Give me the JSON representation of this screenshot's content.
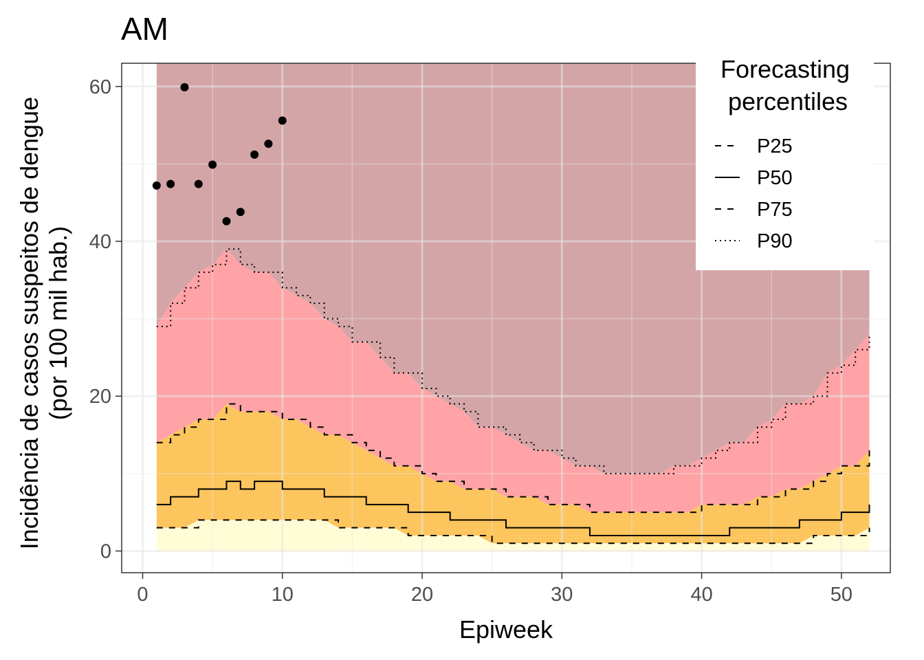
{
  "chart_data": {
    "type": "area",
    "title": "AM",
    "xlabel": "Epiweek",
    "ylabel": [
      "Incidência de casos suspeitos de dengue",
      "(por 100 mil hab.)"
    ],
    "xlim": [
      -1.5,
      53.5
    ],
    "ylim": [
      -2.8,
      63
    ],
    "x_ticks": [
      0,
      10,
      20,
      30,
      40,
      50
    ],
    "y_ticks": [
      0,
      20,
      40,
      60
    ],
    "x_tick_labels": [
      "0",
      "10",
      "20",
      "30",
      "40",
      "50"
    ],
    "y_tick_labels": [
      "0",
      "20",
      "40",
      "60"
    ],
    "grid": true,
    "legend": {
      "title": [
        "Forecasting",
        "percentiles"
      ],
      "position": "top-right",
      "entries": [
        {
          "label": "P25",
          "dash": "dashed"
        },
        {
          "label": "P50",
          "dash": "solid"
        },
        {
          "label": "P75",
          "dash": "dashed"
        },
        {
          "label": "P90",
          "dash": "dotted"
        }
      ]
    },
    "band_colors": {
      "below_p25": "#FFFDD6",
      "p25_p75": "#FDC55E",
      "p75_p90": "#FFA3A6",
      "above_p90": "#D4A5A7"
    },
    "x": [
      1,
      2,
      3,
      4,
      5,
      6,
      7,
      8,
      9,
      10,
      11,
      12,
      13,
      14,
      15,
      16,
      17,
      18,
      19,
      20,
      21,
      22,
      23,
      24,
      25,
      26,
      27,
      28,
      29,
      30,
      31,
      32,
      33,
      34,
      35,
      36,
      37,
      38,
      39,
      40,
      41,
      42,
      43,
      44,
      45,
      46,
      47,
      48,
      49,
      50,
      51,
      52
    ],
    "series": [
      {
        "name": "P25",
        "values": [
          3,
          3,
          3,
          4,
          4,
          4,
          4,
          4,
          4,
          4,
          4,
          4,
          4,
          3,
          3,
          3,
          3,
          3,
          2,
          2,
          2,
          2,
          2,
          2,
          1,
          1,
          1,
          1,
          1,
          1,
          1,
          1,
          1,
          1,
          1,
          1,
          1,
          1,
          1,
          1,
          1,
          1,
          1,
          1,
          1,
          1,
          1,
          2,
          2,
          2,
          2,
          3
        ]
      },
      {
        "name": "P50",
        "values": [
          6,
          7,
          7,
          8,
          8,
          9,
          8,
          9,
          9,
          8,
          8,
          8,
          7,
          7,
          7,
          6,
          6,
          6,
          5,
          5,
          5,
          4,
          4,
          4,
          4,
          3,
          3,
          3,
          3,
          3,
          3,
          2,
          2,
          2,
          2,
          2,
          2,
          2,
          2,
          2,
          2,
          3,
          3,
          3,
          3,
          3,
          4,
          4,
          4,
          5,
          5,
          6
        ]
      },
      {
        "name": "P75",
        "values": [
          14,
          15,
          16,
          17,
          17,
          19,
          18,
          18,
          18,
          17,
          17,
          16,
          15,
          15,
          14,
          13,
          12,
          11,
          11,
          10,
          9,
          9,
          8,
          8,
          8,
          7,
          7,
          7,
          6,
          6,
          6,
          5,
          5,
          5,
          5,
          5,
          5,
          5,
          5,
          6,
          6,
          6,
          6,
          7,
          7,
          8,
          8,
          9,
          10,
          11,
          11,
          13
        ]
      },
      {
        "name": "P90",
        "values": [
          29,
          32,
          34,
          36,
          37,
          39,
          37,
          36,
          36,
          34,
          33,
          32,
          30,
          29,
          27,
          27,
          25,
          23,
          23,
          21,
          20,
          19,
          18,
          16,
          16,
          15,
          14,
          13,
          13,
          12,
          11,
          11,
          10,
          10,
          10,
          10,
          10,
          11,
          11,
          12,
          13,
          14,
          14,
          16,
          17,
          19,
          19,
          20,
          23,
          24,
          26,
          28
        ]
      },
      {
        "name": "observed",
        "x": [
          1,
          2,
          3,
          4,
          5,
          6,
          7,
          8,
          9,
          10
        ],
        "values": [
          47.2,
          47.4,
          59.9,
          47.4,
          49.9,
          42.6,
          43.8,
          51.2,
          52.6,
          55.6
        ]
      }
    ]
  }
}
